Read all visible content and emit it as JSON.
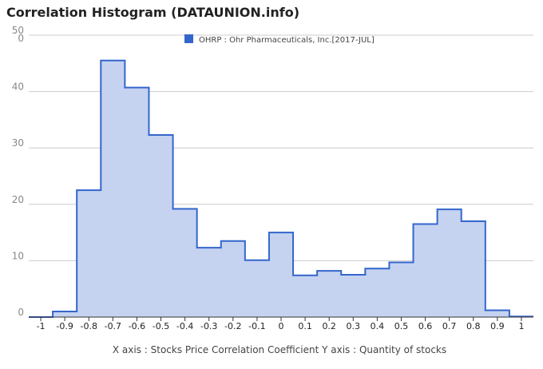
{
  "title": "Correlation Histogram (DATAUNION.info)",
  "chart_data": {
    "type": "area",
    "title": "Correlation Histogram (DATAUNION.info)",
    "legend": {
      "position": "top",
      "color": "#3366cc"
    },
    "series": [
      {
        "name": "OHRP : Ohr Pharmaceuticals, Inc.[2017-JUL]",
        "color": "#3366cc",
        "fill": "#c5d3f1",
        "values": [
          0,
          1,
          22.5,
          45.5,
          40.7,
          32.3,
          19.2,
          12.3,
          13.5,
          10.1,
          15,
          7.4,
          8.2,
          7.5,
          8.6,
          9.7,
          16.5,
          19.1,
          17,
          1.2,
          0.1
        ]
      }
    ],
    "x": [
      -1.0,
      -0.9,
      -0.8,
      -0.7,
      -0.6,
      -0.5,
      -0.4,
      -0.3,
      -0.2,
      -0.1,
      0.0,
      0.1,
      0.2,
      0.3,
      0.4,
      0.5,
      0.6,
      0.7,
      0.8,
      0.9,
      1.0
    ],
    "xticks": [
      "-1",
      "-0.9",
      "-0.8",
      "-0.7",
      "-0.6",
      "-0.5",
      "-0.4",
      "-0.3",
      "-0.2",
      "-0.1",
      "0",
      "0.1",
      "0.2",
      "0.3",
      "0.4",
      "0.5",
      "0.6",
      "0.7",
      "0.8",
      "0.9",
      "1"
    ],
    "yticks": [
      {
        "value": 0,
        "labels": [
          "0"
        ]
      },
      {
        "value": 10,
        "labels": [
          "10"
        ]
      },
      {
        "value": 20,
        "labels": [
          "20"
        ]
      },
      {
        "value": 30,
        "labels": [
          "30"
        ]
      },
      {
        "value": 40,
        "labels": [
          "40"
        ]
      },
      {
        "value": 50,
        "labels": [
          "50",
          "0"
        ]
      }
    ],
    "xlim": [
      -1.05,
      1.05
    ],
    "ylim": [
      0,
      50
    ],
    "grid": true,
    "xlabel": "X axis : Stocks Price Correlation Coefficient",
    "ylabel": "Y axis : Quantity of stocks",
    "axis_caption": "X axis : Stocks Price Correlation Coefficient  Y axis : Quantity of stocks"
  }
}
